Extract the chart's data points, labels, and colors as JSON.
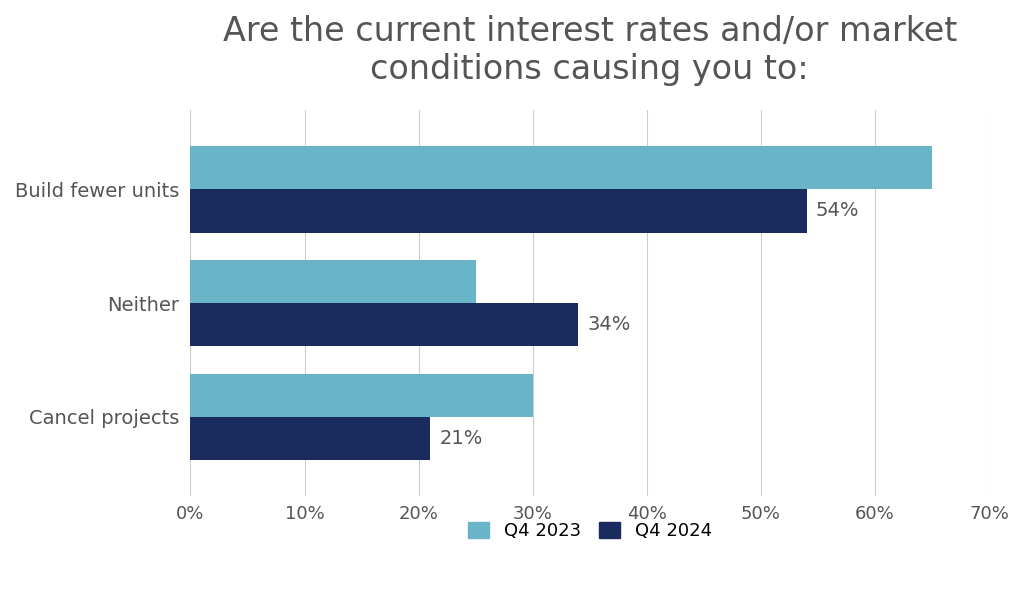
{
  "title": "Are the current interest rates and/or market\nconditions causing you to:",
  "categories": [
    "Cancel projects",
    "Neither",
    "Build fewer units"
  ],
  "q4_2023": [
    30,
    25,
    65
  ],
  "q4_2024": [
    21,
    34,
    54
  ],
  "q4_2023_color": "#6ab4c8",
  "q4_2024_color": "#1a2b5e",
  "background_color": "#ffffff",
  "xlim": [
    0,
    70
  ],
  "xtick_values": [
    0,
    10,
    20,
    30,
    40,
    50,
    60,
    70
  ],
  "bar_height": 0.38,
  "title_fontsize": 24,
  "label_fontsize": 14,
  "tick_fontsize": 13,
  "legend_fontsize": 13,
  "annotation_fontsize": 14,
  "text_color": "#555555",
  "grid_color": "#cccccc",
  "legend_labels": [
    "Q4 2023",
    "Q4 2024"
  ]
}
